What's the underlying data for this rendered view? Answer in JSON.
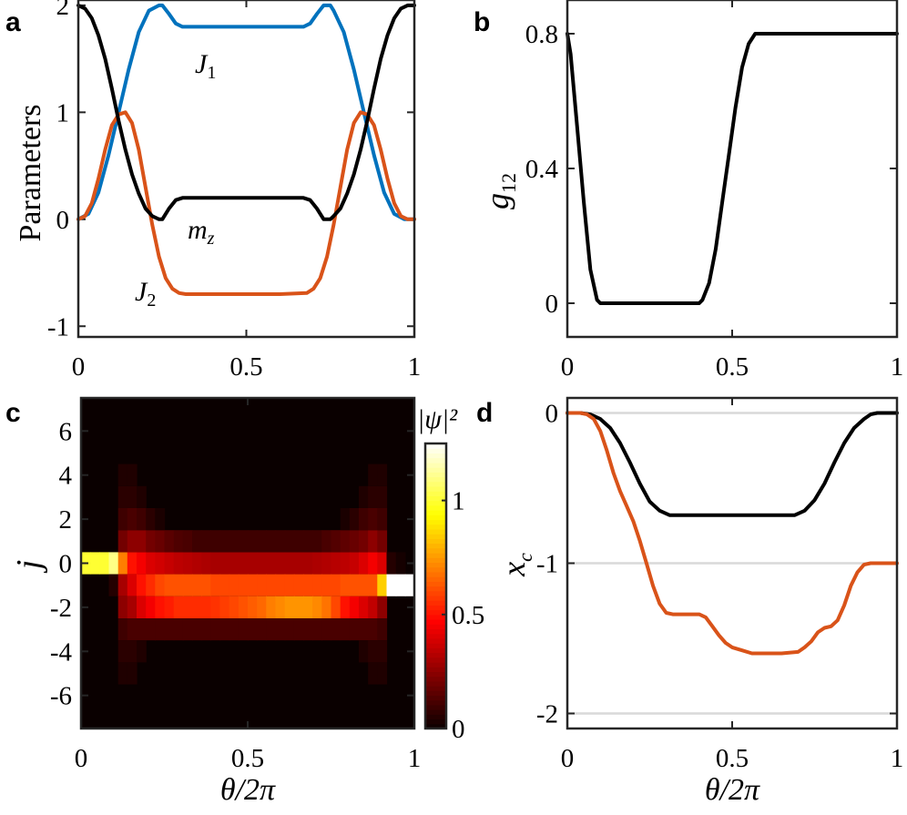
{
  "panels": {
    "a": {
      "label": "a",
      "ylabel": "Parameters"
    },
    "b": {
      "label": "b",
      "ylabel_main": "g",
      "ylabel_sub": "12"
    },
    "c": {
      "label": "c",
      "ylabel": "j",
      "xlabel": "θ/2π",
      "colorbar_label": "|ψ|²"
    },
    "d": {
      "label": "d",
      "ylabel_main": "x",
      "ylabel_sub": "c",
      "xlabel": "θ/2π"
    }
  },
  "colors": {
    "J1": "#0072BD",
    "J2": "#D95319",
    "black": "#000000",
    "gridline": "#d9d9d9"
  },
  "chart_data": [
    {
      "panel": "a",
      "type": "line",
      "ylabel": "Parameters",
      "xlim": [
        0,
        1
      ],
      "ylim": [
        -1.1,
        2.05
      ],
      "xticks": [
        0,
        0.5,
        1
      ],
      "xtick_labels": [
        "0",
        "0.5",
        "1"
      ],
      "yticks": [
        -1,
        0,
        1,
        2
      ],
      "ytick_labels": [
        "-1",
        "0",
        "1",
        "2"
      ],
      "series": [
        {
          "name": "J_1",
          "label_main": "J",
          "label_sub": "1",
          "color": "#0072BD",
          "x": [
            0,
            0.03,
            0.06,
            0.09,
            0.12,
            0.15,
            0.18,
            0.21,
            0.24,
            0.25,
            0.27,
            0.29,
            0.31,
            0.33,
            0.4,
            0.5,
            0.6,
            0.67,
            0.69,
            0.71,
            0.73,
            0.75,
            0.76,
            0.79,
            0.82,
            0.85,
            0.88,
            0.91,
            0.94,
            0.97,
            1
          ],
          "y": [
            0,
            0.05,
            0.25,
            0.6,
            1.0,
            1.4,
            1.75,
            1.95,
            2.0,
            2.0,
            1.92,
            1.83,
            1.8,
            1.8,
            1.8,
            1.8,
            1.8,
            1.8,
            1.83,
            1.92,
            2.0,
            2.0,
            1.95,
            1.75,
            1.4,
            1.0,
            0.6,
            0.25,
            0.05,
            0.0,
            0
          ]
        },
        {
          "name": "J_2",
          "label_main": "J",
          "label_sub": "2",
          "color": "#D95319",
          "x": [
            0,
            0.02,
            0.04,
            0.06,
            0.08,
            0.1,
            0.12,
            0.14,
            0.16,
            0.18,
            0.2,
            0.22,
            0.24,
            0.26,
            0.28,
            0.3,
            0.32,
            0.4,
            0.5,
            0.6,
            0.68,
            0.7,
            0.72,
            0.74,
            0.76,
            0.78,
            0.8,
            0.82,
            0.84,
            0.86,
            0.88,
            0.9,
            0.92,
            0.94,
            0.96,
            0.98,
            1
          ],
          "y": [
            0,
            0.03,
            0.15,
            0.38,
            0.65,
            0.88,
            0.98,
            1.0,
            0.9,
            0.65,
            0.3,
            -0.05,
            -0.35,
            -0.55,
            -0.65,
            -0.69,
            -0.7,
            -0.7,
            -0.7,
            -0.7,
            -0.69,
            -0.65,
            -0.55,
            -0.35,
            -0.05,
            0.3,
            0.65,
            0.9,
            1.0,
            0.98,
            0.88,
            0.65,
            0.38,
            0.15,
            0.03,
            0.0,
            0
          ]
        },
        {
          "name": "m_z",
          "label_main": "m",
          "label_sub": "z",
          "color": "#000000",
          "x": [
            0,
            0.02,
            0.04,
            0.06,
            0.08,
            0.1,
            0.12,
            0.14,
            0.16,
            0.18,
            0.2,
            0.22,
            0.24,
            0.25,
            0.27,
            0.29,
            0.31,
            0.33,
            0.4,
            0.5,
            0.6,
            0.67,
            0.69,
            0.71,
            0.73,
            0.75,
            0.76,
            0.78,
            0.8,
            0.82,
            0.84,
            0.86,
            0.88,
            0.9,
            0.92,
            0.94,
            0.96,
            0.98,
            1
          ],
          "y": [
            2.0,
            1.97,
            1.88,
            1.72,
            1.5,
            1.22,
            0.92,
            0.65,
            0.42,
            0.24,
            0.1,
            0.03,
            0.0,
            0.0,
            0.1,
            0.18,
            0.2,
            0.2,
            0.2,
            0.2,
            0.2,
            0.2,
            0.18,
            0.1,
            0.0,
            0.0,
            0.03,
            0.1,
            0.24,
            0.42,
            0.65,
            0.92,
            1.22,
            1.5,
            1.72,
            1.88,
            1.97,
            2.0,
            2.0
          ]
        }
      ]
    },
    {
      "panel": "b",
      "type": "line",
      "ylabel": "g_12",
      "xlim": [
        0,
        1
      ],
      "ylim": [
        -0.1,
        0.9
      ],
      "xticks": [
        0,
        0.5,
        1
      ],
      "xtick_labels": [
        "0",
        "0.5",
        "1"
      ],
      "yticks": [
        0,
        0.4,
        0.8
      ],
      "ytick_labels": [
        "0",
        "0.4",
        "0.8"
      ],
      "series": [
        {
          "color": "#000000",
          "x": [
            0,
            0.01,
            0.03,
            0.05,
            0.07,
            0.09,
            0.1,
            0.2,
            0.3,
            0.4,
            0.41,
            0.43,
            0.45,
            0.47,
            0.49,
            0.51,
            0.53,
            0.55,
            0.57,
            0.59,
            0.6,
            0.7,
            0.8,
            0.9,
            1
          ],
          "y": [
            0.8,
            0.74,
            0.52,
            0.3,
            0.1,
            0.01,
            0.0,
            0.0,
            0.0,
            0.0,
            0.01,
            0.06,
            0.16,
            0.3,
            0.44,
            0.58,
            0.7,
            0.77,
            0.8,
            0.8,
            0.8,
            0.8,
            0.8,
            0.8,
            0.8
          ]
        }
      ]
    },
    {
      "panel": "c",
      "type": "heatmap",
      "ylabel": "j",
      "xlabel": "θ/2π",
      "xlim": [
        0,
        1
      ],
      "ylim": [
        -7.5,
        7.5
      ],
      "xticks": [
        0,
        0.5,
        1
      ],
      "xtick_labels": [
        "0",
        "0.5",
        "1"
      ],
      "yticks": [
        -6,
        -4,
        -2,
        0,
        2,
        4,
        6
      ],
      "ytick_labels": [
        "-6",
        "-4",
        "-2",
        "0",
        "2",
        "4",
        "6"
      ],
      "colorbar": {
        "label": "|ψ|²",
        "range": [
          0,
          1.25
        ],
        "ticks": [
          0,
          0.5,
          1
        ],
        "tick_labels": [
          "0",
          "0.5",
          "1"
        ]
      },
      "x_bins": 36,
      "rows": [
        {
          "j": 0,
          "values": [
            1,
            1,
            1,
            1.1,
            0.7,
            0.5,
            0.45,
            0.4,
            0.38,
            0.36,
            0.34,
            0.33,
            0.32,
            0.31,
            0.3,
            0.3,
            0.3,
            0.3,
            0.3,
            0.3,
            0.3,
            0.3,
            0.3,
            0.3,
            0.3,
            0.31,
            0.32,
            0.33,
            0.34,
            0.36,
            0.4,
            0.45,
            0.4,
            0.05,
            0.02,
            0.0
          ]
        },
        {
          "j": -1,
          "values": [
            0,
            0,
            0,
            0.05,
            0.3,
            0.4,
            0.5,
            0.55,
            0.6,
            0.62,
            0.62,
            0.62,
            0.62,
            0.62,
            0.6,
            0.6,
            0.6,
            0.6,
            0.6,
            0.6,
            0.6,
            0.6,
            0.6,
            0.6,
            0.6,
            0.6,
            0.6,
            0.6,
            0.62,
            0.62,
            0.62,
            0.62,
            0.85,
            1.25,
            1.3,
            1.3
          ]
        },
        {
          "j": -2,
          "values": [
            0,
            0,
            0,
            0,
            0.25,
            0.3,
            0.4,
            0.45,
            0.5,
            0.52,
            0.55,
            0.55,
            0.55,
            0.55,
            0.56,
            0.58,
            0.6,
            0.62,
            0.64,
            0.66,
            0.7,
            0.72,
            0.74,
            0.74,
            0.74,
            0.72,
            0.68,
            0.6,
            0.5,
            0.45,
            0.4,
            0.35,
            0.25,
            0.0,
            0,
            0
          ]
        },
        {
          "j": 1,
          "values": [
            0,
            0,
            0,
            0,
            0.2,
            0.25,
            0.25,
            0.2,
            0.18,
            0.15,
            0.13,
            0.12,
            0.1,
            0.1,
            0.1,
            0.1,
            0.1,
            0.1,
            0.1,
            0.1,
            0.1,
            0.1,
            0.1,
            0.1,
            0.1,
            0.1,
            0.12,
            0.14,
            0.16,
            0.18,
            0.2,
            0.25,
            0.2,
            0,
            0,
            0
          ]
        },
        {
          "j": -3,
          "values": [
            0,
            0,
            0,
            0,
            0.1,
            0.12,
            0.12,
            0.12,
            0.12,
            0.12,
            0.12,
            0.12,
            0.12,
            0.12,
            0.12,
            0.12,
            0.12,
            0.12,
            0.12,
            0.12,
            0.12,
            0.12,
            0.12,
            0.12,
            0.12,
            0.12,
            0.12,
            0.12,
            0.12,
            0.12,
            0.12,
            0.12,
            0.1,
            0,
            0,
            0
          ]
        },
        {
          "j": 2,
          "values": [
            0,
            0,
            0,
            0,
            0.1,
            0.12,
            0.1,
            0.06,
            0.03,
            0,
            0,
            0,
            0,
            0,
            0,
            0,
            0,
            0,
            0,
            0,
            0,
            0,
            0,
            0,
            0,
            0,
            0,
            0,
            0.03,
            0.06,
            0.1,
            0.12,
            0.1,
            0,
            0,
            0
          ]
        },
        {
          "j": 3,
          "values": [
            0,
            0,
            0,
            0,
            0.06,
            0.06,
            0.04,
            0,
            0,
            0,
            0,
            0,
            0,
            0,
            0,
            0,
            0,
            0,
            0,
            0,
            0,
            0,
            0,
            0,
            0,
            0,
            0,
            0,
            0,
            0,
            0.04,
            0.06,
            0.06,
            0,
            0,
            0
          ]
        },
        {
          "j": -4,
          "values": [
            0,
            0,
            0,
            0,
            0.06,
            0.06,
            0.04,
            0,
            0,
            0,
            0,
            0,
            0,
            0,
            0,
            0,
            0,
            0,
            0,
            0,
            0,
            0,
            0,
            0,
            0,
            0,
            0,
            0,
            0,
            0,
            0.04,
            0.06,
            0.06,
            0,
            0,
            0
          ]
        },
        {
          "j": 4,
          "values": [
            0,
            0,
            0,
            0,
            0.04,
            0.04,
            0,
            0,
            0,
            0,
            0,
            0,
            0,
            0,
            0,
            0,
            0,
            0,
            0,
            0,
            0,
            0,
            0,
            0,
            0,
            0,
            0,
            0,
            0,
            0,
            0,
            0.04,
            0.04,
            0,
            0,
            0
          ]
        },
        {
          "j": -5,
          "values": [
            0,
            0,
            0,
            0,
            0.04,
            0.04,
            0,
            0,
            0,
            0,
            0,
            0,
            0,
            0,
            0,
            0,
            0,
            0,
            0,
            0,
            0,
            0,
            0,
            0,
            0,
            0,
            0,
            0,
            0,
            0,
            0,
            0.04,
            0.04,
            0,
            0,
            0
          ]
        }
      ]
    },
    {
      "panel": "d",
      "type": "line",
      "ylabel": "x_c",
      "xlabel": "θ/2π",
      "xlim": [
        0,
        1
      ],
      "ylim": [
        -2.1,
        0.1
      ],
      "xticks": [
        0,
        0.5,
        1
      ],
      "xtick_labels": [
        "0",
        "0.5",
        "1"
      ],
      "yticks": [
        -2,
        -1,
        0
      ],
      "ytick_labels": [
        "-2",
        "-1",
        "0"
      ],
      "hlines": [
        0,
        -1,
        -2
      ],
      "series": [
        {
          "color": "#000000",
          "x": [
            0,
            0.04,
            0.07,
            0.1,
            0.13,
            0.16,
            0.19,
            0.22,
            0.25,
            0.28,
            0.31,
            0.33,
            0.4,
            0.5,
            0.6,
            0.67,
            0.69,
            0.72,
            0.75,
            0.78,
            0.81,
            0.84,
            0.87,
            0.9,
            0.92,
            0.94,
            0.96,
            1
          ],
          "y": [
            0,
            0,
            -0.01,
            -0.04,
            -0.1,
            -0.2,
            -0.33,
            -0.47,
            -0.59,
            -0.65,
            -0.68,
            -0.68,
            -0.68,
            -0.68,
            -0.68,
            -0.68,
            -0.68,
            -0.65,
            -0.58,
            -0.47,
            -0.33,
            -0.2,
            -0.1,
            -0.04,
            -0.01,
            0,
            0,
            0
          ]
        },
        {
          "color": "#D95319",
          "x": [
            0,
            0.04,
            0.06,
            0.08,
            0.1,
            0.12,
            0.14,
            0.16,
            0.18,
            0.2,
            0.22,
            0.24,
            0.26,
            0.28,
            0.3,
            0.32,
            0.36,
            0.4,
            0.42,
            0.44,
            0.46,
            0.48,
            0.5,
            0.53,
            0.56,
            0.6,
            0.65,
            0.7,
            0.72,
            0.74,
            0.76,
            0.78,
            0.8,
            0.82,
            0.84,
            0.86,
            0.88,
            0.9,
            0.92,
            0.94,
            0.96,
            1
          ],
          "y": [
            0,
            0,
            -0.01,
            -0.04,
            -0.12,
            -0.25,
            -0.4,
            -0.52,
            -0.62,
            -0.72,
            -0.85,
            -1.0,
            -1.15,
            -1.27,
            -1.33,
            -1.34,
            -1.34,
            -1.34,
            -1.36,
            -1.42,
            -1.48,
            -1.53,
            -1.56,
            -1.58,
            -1.6,
            -1.6,
            -1.6,
            -1.59,
            -1.56,
            -1.52,
            -1.46,
            -1.43,
            -1.42,
            -1.38,
            -1.28,
            -1.15,
            -1.06,
            -1.01,
            -1.0,
            -1.0,
            -1.0,
            -1.0
          ]
        }
      ]
    }
  ]
}
